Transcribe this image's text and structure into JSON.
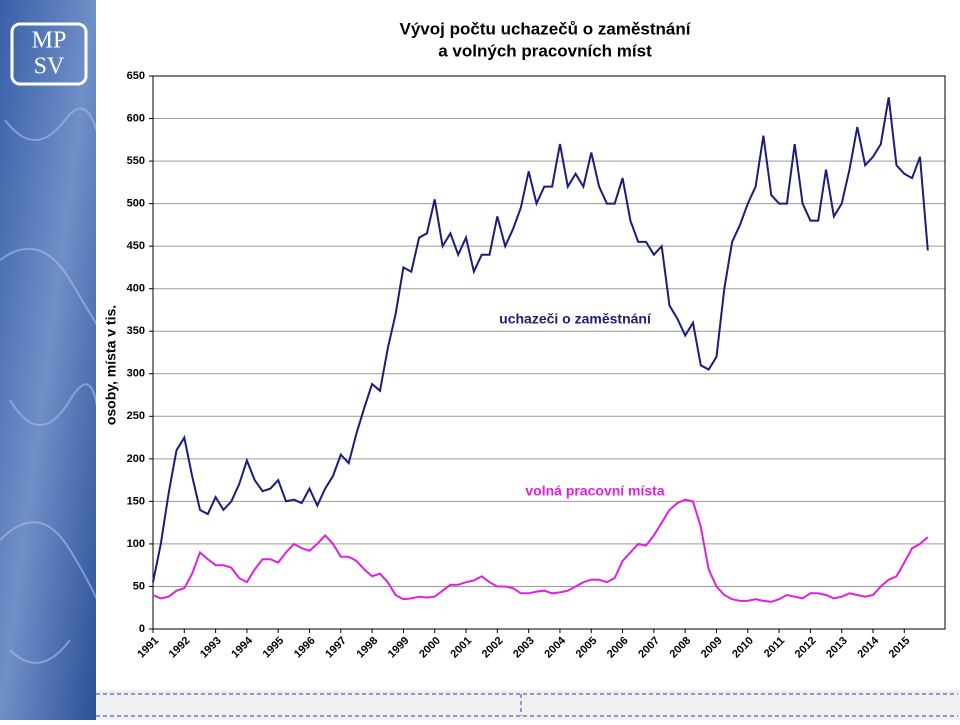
{
  "logo": [
    "MP",
    "SV"
  ],
  "chart_data": {
    "type": "line",
    "title": [
      "Vývoj počtu uchazečů o zaměstnání",
      "a volných pracovních míst"
    ],
    "y_label": "osoby, místa v tis.",
    "x": [
      1991,
      1991.25,
      1991.5,
      1991.75,
      1992,
      1992.25,
      1992.5,
      1992.75,
      1993,
      1993.25,
      1993.5,
      1993.75,
      1994,
      1994.25,
      1994.5,
      1994.75,
      1995,
      1995.25,
      1995.5,
      1995.75,
      1996,
      1996.25,
      1996.5,
      1996.75,
      1997,
      1997.25,
      1997.5,
      1997.75,
      1998,
      1998.25,
      1998.5,
      1998.75,
      1999,
      1999.25,
      1999.5,
      1999.75,
      2000,
      2000.25,
      2000.5,
      2000.75,
      2001,
      2001.25,
      2001.5,
      2001.75,
      2002,
      2002.25,
      2002.5,
      2002.75,
      2003,
      2003.25,
      2003.5,
      2003.75,
      2004,
      2004.25,
      2004.5,
      2004.75,
      2005,
      2005.25,
      2005.5,
      2005.75,
      2006,
      2006.25,
      2006.5,
      2006.75,
      2007,
      2007.25,
      2007.5,
      2007.75,
      2008,
      2008.25,
      2008.5,
      2008.75,
      2009,
      2009.25,
      2009.5,
      2009.75,
      2010,
      2010.25,
      2010.5,
      2010.75,
      2011,
      2011.25,
      2011.5,
      2011.75,
      2012,
      2012.25,
      2012.5,
      2012.75,
      2013,
      2013.25,
      2013.5,
      2013.75,
      2014,
      2014.25,
      2014.5,
      2014.75,
      2015,
      2015.25,
      2015.5,
      2015.75
    ],
    "series": [
      {
        "name": "uchazeči o zaměstnání",
        "color": "#1c1c7a",
        "values": [
          55,
          100,
          160,
          210,
          225,
          180,
          140,
          135,
          155,
          140,
          150,
          170,
          198,
          175,
          162,
          165,
          175,
          150,
          152,
          148,
          165,
          145,
          165,
          180,
          205,
          195,
          230,
          260,
          288,
          280,
          330,
          370,
          425,
          420,
          460,
          465,
          505,
          450,
          465,
          440,
          460,
          420,
          440,
          440,
          485,
          450,
          470,
          495,
          538,
          500,
          520,
          520,
          570,
          520,
          535,
          520,
          560,
          520,
          500,
          500,
          530,
          480,
          455,
          455,
          440,
          450,
          380,
          365,
          345,
          360,
          310,
          305,
          320,
          400,
          455,
          475,
          500,
          520,
          580,
          510,
          500,
          500,
          570,
          500,
          480,
          480,
          540,
          485,
          500,
          540,
          590,
          545,
          555,
          570,
          625,
          545,
          535,
          530,
          555,
          445
        ]
      },
      {
        "name": "volná pracovní místa",
        "color": "#e020e0",
        "values": [
          40,
          36,
          38,
          45,
          48,
          65,
          90,
          82,
          75,
          75,
          72,
          60,
          55,
          70,
          82,
          82,
          78,
          90,
          100,
          95,
          92,
          100,
          110,
          100,
          85,
          85,
          80,
          70,
          62,
          65,
          55,
          40,
          35,
          36,
          38,
          37,
          38,
          45,
          52,
          52,
          55,
          57,
          62,
          55,
          50,
          50,
          48,
          42,
          42,
          44,
          45,
          42,
          43,
          45,
          50,
          55,
          58,
          58,
          55,
          60,
          80,
          90,
          100,
          98,
          110,
          125,
          140,
          148,
          152,
          150,
          120,
          70,
          50,
          40,
          35,
          33,
          33,
          35,
          33,
          32,
          35,
          40,
          38,
          36,
          42,
          42,
          40,
          36,
          38,
          42,
          40,
          38,
          40,
          50,
          58,
          62,
          78,
          95,
          100,
          108
        ]
      }
    ],
    "xlim": [
      1991,
      2016.3
    ],
    "xticks": [
      1991,
      1992,
      1993,
      1994,
      1995,
      1996,
      1997,
      1998,
      1999,
      2000,
      2001,
      2002,
      2003,
      2004,
      2005,
      2006,
      2007,
      2008,
      2009,
      2010,
      2011,
      2012,
      2013,
      2014,
      2015
    ],
    "ylim": [
      0,
      650
    ],
    "yticks": [
      0,
      50,
      100,
      150,
      200,
      250,
      300,
      350,
      400,
      450,
      500,
      550,
      600,
      650
    ],
    "grid": true
  }
}
